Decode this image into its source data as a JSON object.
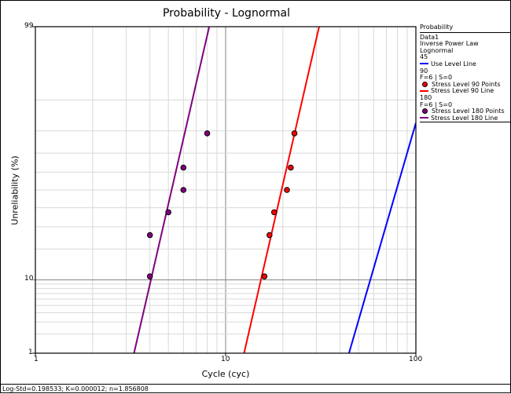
{
  "chart_data": {
    "type": "scatter",
    "title": "Probability - Lognormal",
    "xlabel": "Cycle (cyc)",
    "ylabel": "Unreliability (%)",
    "xscale": "log",
    "yscale": "lognormal-probability",
    "xlim": [
      1,
      100
    ],
    "ylim": [
      1,
      99
    ],
    "x_tick_labels": [
      "1",
      "10",
      "100"
    ],
    "y_tick_labels": [
      "1",
      "10",
      "99"
    ],
    "grid": true,
    "legend_position": "right",
    "series": [
      {
        "name": "Use Level Line",
        "kind": "line",
        "color": "#0000ff",
        "stress": "45",
        "points": [
          [
            44.5,
            1
          ],
          [
            100,
            83
          ]
        ]
      },
      {
        "name": "Stress Level 90 Points",
        "kind": "points",
        "color": "#ff0000",
        "stress": "90",
        "points": [
          [
            16.0,
            10.9
          ],
          [
            17.0,
            26.0
          ],
          [
            18.0,
            37.5
          ],
          [
            21.0,
            50.0
          ],
          [
            22.0,
            62.5
          ],
          [
            23.0,
            79.0
          ]
        ]
      },
      {
        "name": "Stress Level 90 Line",
        "kind": "line",
        "color": "#ff0000",
        "stress": "90",
        "points": [
          [
            12.5,
            1
          ],
          [
            31.0,
            99
          ]
        ]
      },
      {
        "name": "Stress Level 180 Points",
        "kind": "points",
        "color": "#800080",
        "stress": "180",
        "points": [
          [
            4.0,
            10.9
          ],
          [
            4.0,
            26.0
          ],
          [
            5.0,
            37.5
          ],
          [
            6.0,
            50.0
          ],
          [
            6.0,
            62.5
          ],
          [
            8.0,
            79.0
          ]
        ]
      },
      {
        "name": "Stress Level 180 Line",
        "kind": "line",
        "color": "#800080",
        "stress": "180",
        "points": [
          [
            3.3,
            1
          ],
          [
            8.2,
            99
          ]
        ]
      }
    ]
  },
  "legend": {
    "title": "Probability",
    "lines": [
      "Data1",
      "Inverse Power Law",
      "Lognormal"
    ],
    "groups": [
      {
        "stress": "45",
        "items": [
          {
            "label": "Use Level Line",
            "type": "line",
            "color": "#0000ff"
          }
        ]
      },
      {
        "stress": "90",
        "info": "F=6 | S=0",
        "items": [
          {
            "label": "Stress Level 90 Points",
            "type": "dot",
            "color": "#ff0000"
          },
          {
            "label": "Stress Level 90 Line",
            "type": "line",
            "color": "#ff0000"
          }
        ]
      },
      {
        "stress": "180",
        "info": "F=6 | S=0",
        "items": [
          {
            "label": "Stress Level 180 Points",
            "type": "dot",
            "color": "#800080"
          },
          {
            "label": "Stress Level 180 Line",
            "type": "line",
            "color": "#800080"
          }
        ]
      }
    ]
  },
  "status_bar": "Log-Std=0.198533; K=0.000012; n=1.856808"
}
